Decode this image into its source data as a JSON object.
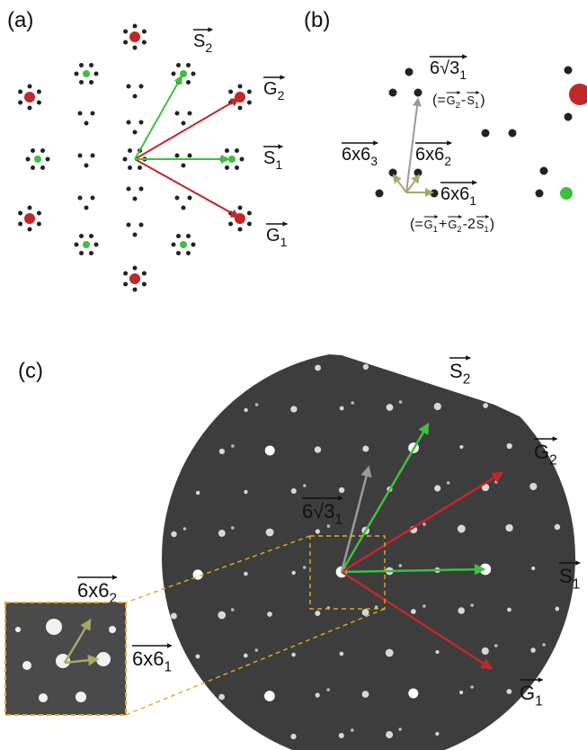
{
  "panel_a": {
    "label": "(a)",
    "vectors": [
      {
        "text": "S",
        "sub": "2"
      },
      {
        "text": "G",
        "sub": "2"
      },
      {
        "text": "S",
        "sub": "1"
      },
      {
        "text": "G",
        "sub": "1"
      }
    ]
  },
  "panel_b": {
    "label": "(b)",
    "vectors": [
      {
        "text": "6√3",
        "sub": "1"
      },
      {
        "text": "6x6",
        "sub": "3"
      },
      {
        "text": "6x6",
        "sub": "2"
      },
      {
        "text": "6x6",
        "sub": "1"
      }
    ],
    "formulas": [
      {
        "parts": [
          "(=",
          {
            "text": "G",
            "sub": "2"
          },
          "-",
          {
            "text": "S",
            "sub": "1"
          },
          ")"
        ]
      },
      {
        "parts": [
          "(=",
          {
            "text": "G",
            "sub": "1"
          },
          "+",
          {
            "text": "G",
            "sub": "2"
          },
          "-2",
          {
            "text": "S",
            "sub": "1"
          },
          ")"
        ]
      }
    ]
  },
  "panel_c": {
    "label": "(c)",
    "vectors": [
      {
        "text": "S",
        "sub": "2"
      },
      {
        "text": "G",
        "sub": "2"
      },
      {
        "text": "S",
        "sub": "1"
      },
      {
        "text": "G",
        "sub": "1"
      },
      {
        "text": "6√3",
        "sub": "1"
      },
      {
        "text": "6x6",
        "sub": "2"
      },
      {
        "text": "6x6",
        "sub": "1"
      }
    ]
  }
}
